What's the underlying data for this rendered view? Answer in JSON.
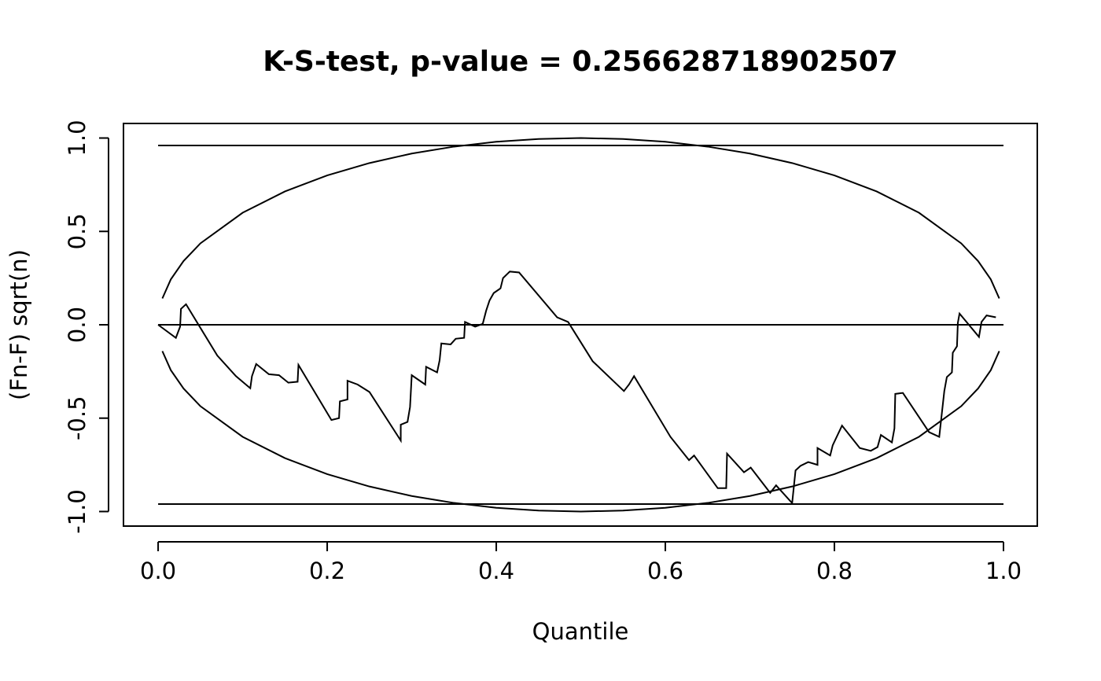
{
  "chart_data": {
    "type": "line",
    "title": "K-S-test, p-value =  0.256628718902507",
    "xlabel": "Quantile",
    "ylabel": "(Fn-F) sqrt(n)",
    "xlim": [
      -0.041,
      1.04
    ],
    "ylim": [
      -1.078,
      1.078
    ],
    "xticks": [
      {
        "value": 0,
        "label": "0.0"
      },
      0.2,
      0.4,
      0.6,
      0.8,
      {
        "value": 1,
        "label": "1.0"
      }
    ],
    "yticks": [
      {
        "value": -1,
        "label": "-1.0"
      },
      -0.5,
      {
        "value": 0,
        "label": "0.0"
      },
      0.5,
      {
        "value": 1,
        "label": "1.0"
      }
    ],
    "series": [
      {
        "color": "#000000",
        "x": [
          0.0,
          0.021,
          0.026,
          0.027,
          0.033,
          0.07,
          0.092,
          0.109,
          0.111,
          0.116,
          0.131,
          0.143,
          0.154,
          0.165,
          0.166,
          0.205,
          0.214,
          0.215,
          0.224,
          0.224,
          0.236,
          0.25,
          0.287,
          0.287,
          0.295,
          0.298,
          0.3,
          0.316,
          0.317,
          0.33,
          0.333,
          0.335,
          0.346,
          0.352,
          0.362,
          0.363,
          0.375,
          0.384,
          0.388,
          0.392,
          0.397,
          0.405,
          0.408,
          0.416,
          0.427,
          0.472,
          0.485,
          0.514,
          0.551,
          0.557,
          0.563,
          0.606,
          0.628,
          0.634,
          0.662,
          0.672,
          0.673,
          0.693,
          0.701,
          0.724,
          0.731,
          0.75,
          0.754,
          0.76,
          0.769,
          0.78,
          0.78,
          0.795,
          0.798,
          0.809,
          0.83,
          0.843,
          0.851,
          0.855,
          0.868,
          0.871,
          0.872,
          0.881,
          0.912,
          0.924,
          0.93,
          0.933,
          0.939,
          0.94,
          0.945,
          0.946,
          0.948,
          0.971,
          0.974,
          0.98,
          0.991
        ],
        "values": [
          0.0,
          -0.07,
          -0.01,
          0.085,
          0.11,
          -0.165,
          -0.275,
          -0.34,
          -0.275,
          -0.21,
          -0.265,
          -0.27,
          -0.31,
          -0.305,
          -0.215,
          -0.51,
          -0.5,
          -0.41,
          -0.4,
          -0.3,
          -0.32,
          -0.36,
          -0.62,
          -0.535,
          -0.52,
          -0.44,
          -0.27,
          -0.32,
          -0.225,
          -0.255,
          -0.19,
          -0.1,
          -0.105,
          -0.075,
          -0.07,
          0.015,
          -0.01,
          0.005,
          0.075,
          0.13,
          0.17,
          0.195,
          0.25,
          0.285,
          0.28,
          0.04,
          0.015,
          -0.195,
          -0.355,
          -0.32,
          -0.275,
          -0.6,
          -0.725,
          -0.7,
          -0.875,
          -0.875,
          -0.69,
          -0.79,
          -0.765,
          -0.9,
          -0.86,
          -0.955,
          -0.78,
          -0.755,
          -0.735,
          -0.75,
          -0.66,
          -0.7,
          -0.645,
          -0.54,
          -0.66,
          -0.675,
          -0.655,
          -0.59,
          -0.63,
          -0.555,
          -0.37,
          -0.365,
          -0.575,
          -0.6,
          -0.355,
          -0.28,
          -0.255,
          -0.15,
          -0.115,
          0.01,
          0.06,
          -0.065,
          0.015,
          0.05,
          0.04
        ]
      },
      {
        "color": "#000000",
        "x": [
          0,
          1
        ],
        "values": [
          0.96,
          0.96
        ]
      },
      {
        "color": "#000000",
        "x": [
          0,
          1
        ],
        "values": [
          -0.96,
          -0.96
        ]
      },
      {
        "color": "#000000",
        "x": [
          0,
          1
        ],
        "values": [
          0,
          0
        ]
      },
      {
        "color": "#000000",
        "x": [
          0.005,
          0.015,
          0.03,
          0.05,
          0.1,
          0.15,
          0.2,
          0.25,
          0.3,
          0.35,
          0.4,
          0.45,
          0.5,
          0.55,
          0.6,
          0.65,
          0.7,
          0.75,
          0.8,
          0.85,
          0.9,
          0.95,
          0.97,
          0.985,
          0.995
        ],
        "values": [
          0.141,
          0.243,
          0.341,
          0.436,
          0.6,
          0.714,
          0.8,
          0.866,
          0.917,
          0.954,
          0.98,
          0.995,
          1.0,
          0.995,
          0.98,
          0.954,
          0.917,
          0.866,
          0.8,
          0.714,
          0.6,
          0.436,
          0.341,
          0.243,
          0.141
        ]
      },
      {
        "color": "#000000",
        "x": [
          0.005,
          0.015,
          0.03,
          0.05,
          0.1,
          0.15,
          0.2,
          0.25,
          0.3,
          0.35,
          0.4,
          0.45,
          0.5,
          0.55,
          0.6,
          0.65,
          0.7,
          0.75,
          0.8,
          0.85,
          0.9,
          0.95,
          0.97,
          0.985,
          0.995
        ],
        "values": [
          -0.141,
          -0.243,
          -0.341,
          -0.436,
          -0.6,
          -0.714,
          -0.8,
          -0.866,
          -0.917,
          -0.954,
          -0.98,
          -0.995,
          -1.0,
          -0.995,
          -0.98,
          -0.954,
          -0.917,
          -0.866,
          -0.8,
          -0.714,
          -0.6,
          -0.436,
          -0.341,
          -0.243,
          -0.141
        ]
      }
    ]
  }
}
